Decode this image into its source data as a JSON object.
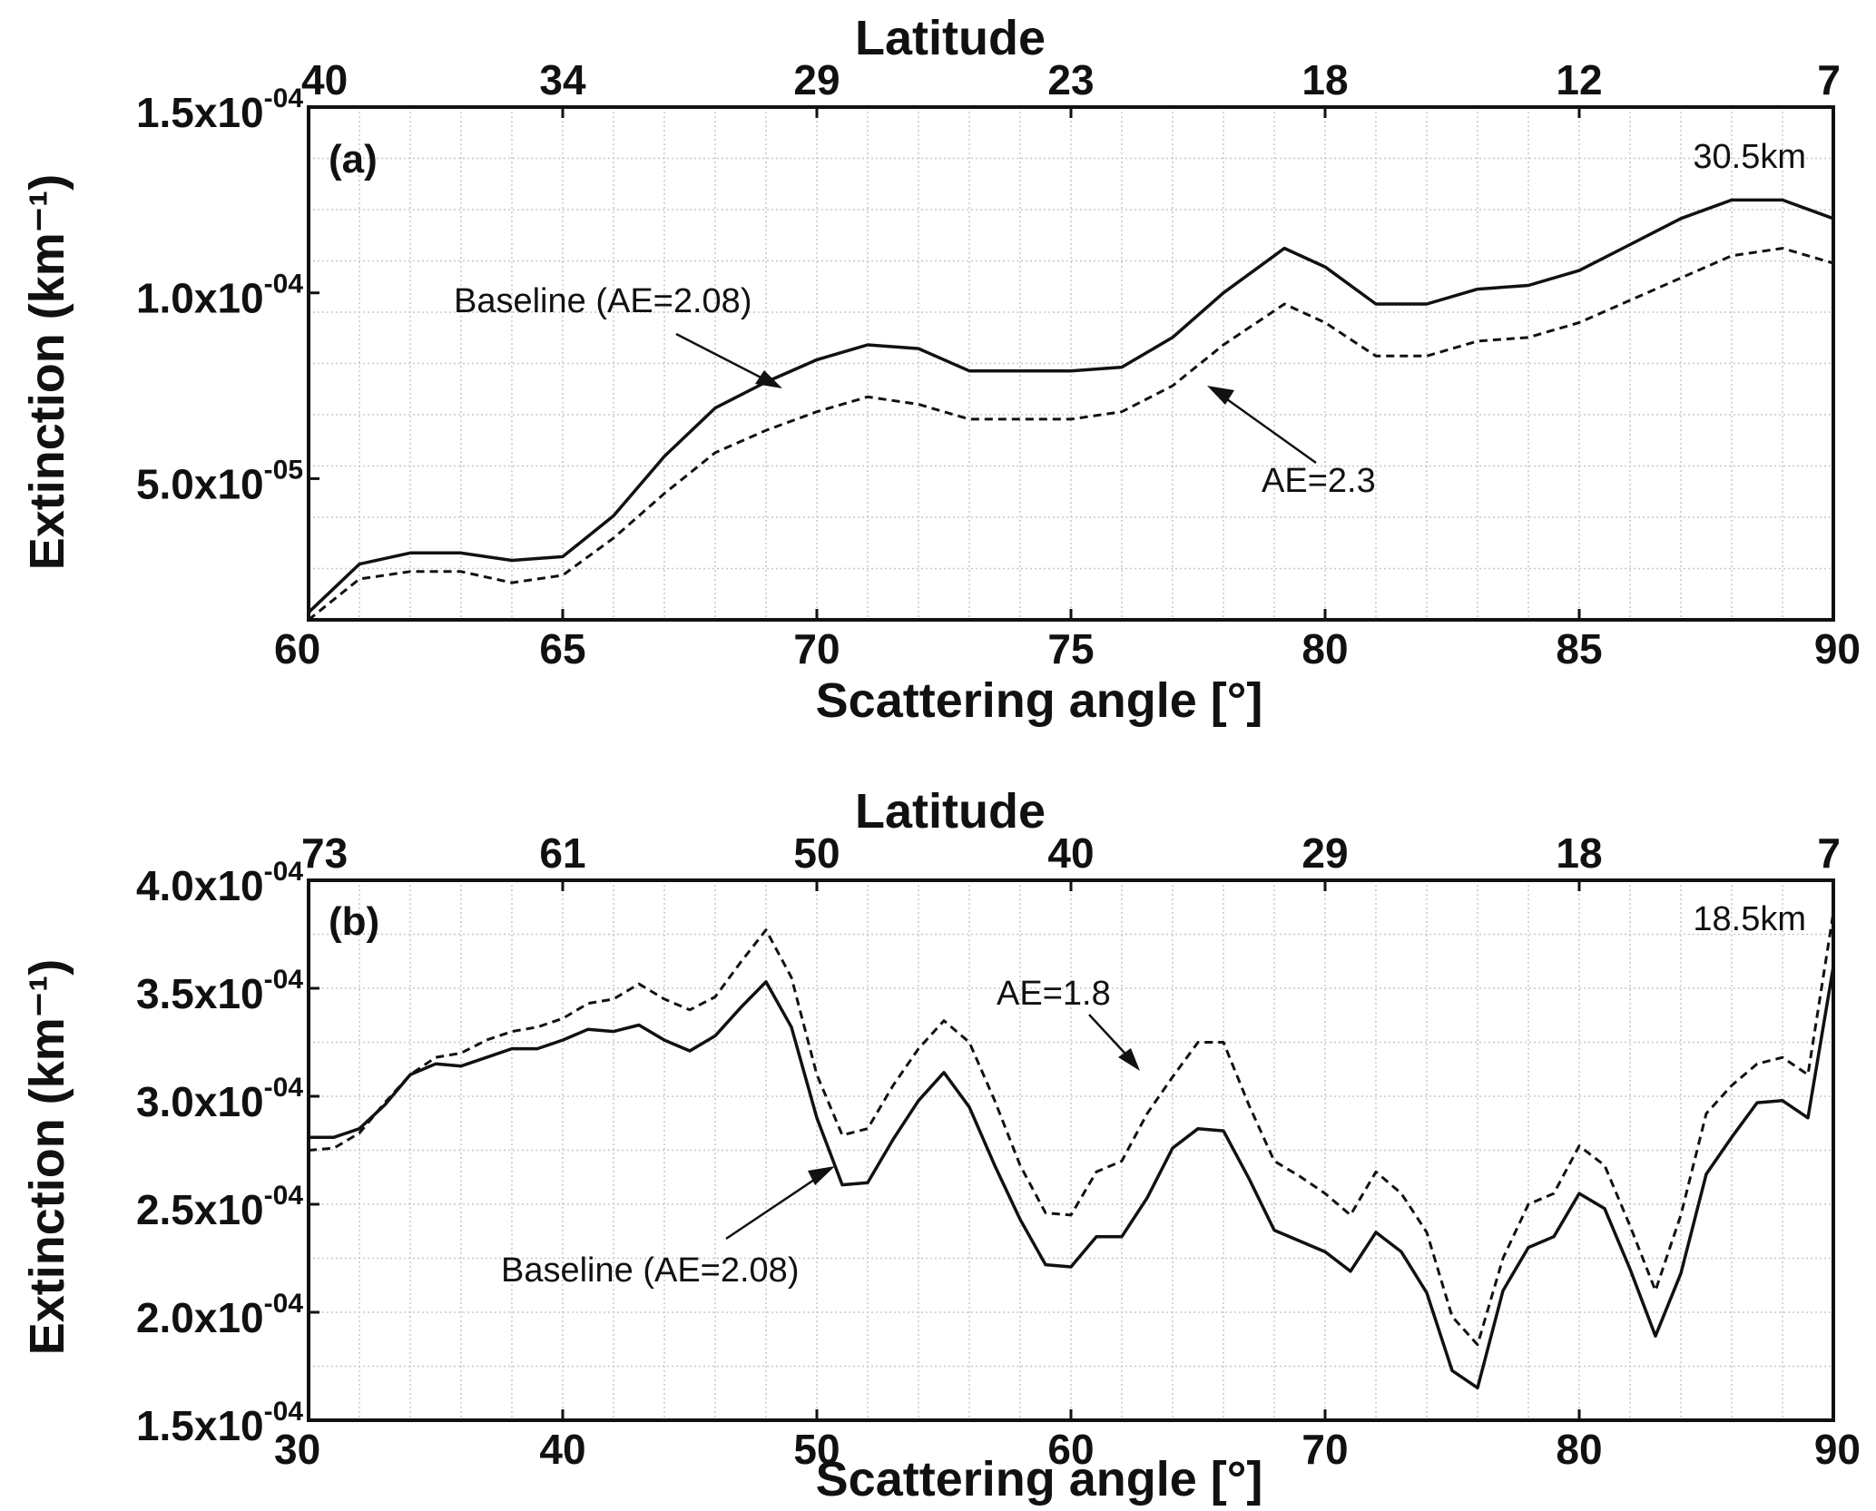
{
  "chart_data": [
    {
      "type": "line",
      "panel_label": "(a)",
      "altitude_label": "30.5km",
      "xlabel": "Scattering angle [°]",
      "ylabel": "Extinction (km⁻¹)",
      "top_axis_label": "Latitude",
      "xlim": [
        60,
        90
      ],
      "ylim": [
        1.2e-05,
        0.00015
      ],
      "x_ticks": [
        60,
        65,
        70,
        75,
        80,
        85,
        90
      ],
      "x_tick_labels": [
        "60",
        "65",
        "70",
        "75",
        "80",
        "85",
        "90"
      ],
      "y_ticks": [
        5e-05,
        0.0001,
        0.00015
      ],
      "y_tick_labels": [
        {
          "mantissa": "5.0x10",
          "exp": "-05"
        },
        {
          "mantissa": "1.0x10",
          "exp": "-04"
        },
        {
          "mantissa": "1.5x10",
          "exp": "-04"
        }
      ],
      "top_ticks": [
        {
          "x": 60,
          "label": "40"
        },
        {
          "x": 65,
          "label": "34"
        },
        {
          "x": 70,
          "label": "29"
        },
        {
          "x": 75,
          "label": "23"
        },
        {
          "x": 80,
          "label": "18"
        },
        {
          "x": 85,
          "label": "12"
        },
        {
          "x": 90,
          "label": "7"
        }
      ],
      "grid": true,
      "series": [
        {
          "name": "Baseline (AE=2.08)",
          "style": "solid",
          "x": [
            60,
            61,
            62,
            63,
            64,
            65,
            66,
            67,
            68,
            69,
            70,
            71,
            72,
            73,
            74,
            75,
            76,
            77,
            78,
            79.2,
            80,
            81,
            82,
            83,
            84,
            85,
            86,
            87,
            88,
            89,
            90
          ],
          "y": [
            1.4e-05,
            2.7e-05,
            3e-05,
            3e-05,
            2.8e-05,
            2.9e-05,
            4e-05,
            5.6e-05,
            6.9e-05,
            7.6e-05,
            8.2e-05,
            8.6e-05,
            8.5e-05,
            7.9e-05,
            7.9e-05,
            7.9e-05,
            8e-05,
            8.8e-05,
            0.0001,
            0.000112,
            0.000107,
            9.7e-05,
            9.7e-05,
            0.000101,
            0.000102,
            0.000106,
            0.000113,
            0.00012,
            0.000125,
            0.000125,
            0.00012
          ]
        },
        {
          "name": "AE=2.3",
          "style": "dashed",
          "x": [
            60,
            61,
            62,
            63,
            64,
            65,
            66,
            67,
            68,
            69,
            70,
            71,
            72,
            73,
            74,
            75,
            76,
            77,
            78,
            79.2,
            80,
            81,
            82,
            83,
            84,
            85,
            86,
            87,
            88,
            89,
            90
          ],
          "y": [
            1.2e-05,
            2.3e-05,
            2.5e-05,
            2.5e-05,
            2.2e-05,
            2.4e-05,
            3.4e-05,
            4.6e-05,
            5.7e-05,
            6.3e-05,
            6.8e-05,
            7.2e-05,
            7e-05,
            6.6e-05,
            6.6e-05,
            6.6e-05,
            6.8e-05,
            7.5e-05,
            8.6e-05,
            9.7e-05,
            9.2e-05,
            8.3e-05,
            8.3e-05,
            8.7e-05,
            8.8e-05,
            9.2e-05,
            9.8e-05,
            0.000104,
            0.00011,
            0.000112,
            0.000108
          ]
        }
      ],
      "annotations": [
        {
          "text": "Baseline (AE=2.08)",
          "points_to": {
            "x": 69.2,
            "y": 7.6e-05
          }
        },
        {
          "text": "AE=2.3",
          "points_to": {
            "x": 77.5,
            "y": 7.8e-05
          }
        }
      ]
    },
    {
      "type": "line",
      "panel_label": "(b)",
      "altitude_label": "18.5km",
      "xlabel": "Scattering angle [°]",
      "ylabel": "Extinction (km⁻¹)",
      "top_axis_label": "Latitude",
      "xlim": [
        30,
        90
      ],
      "ylim": [
        0.00015,
        0.0004
      ],
      "x_ticks": [
        30,
        40,
        50,
        60,
        70,
        80,
        90
      ],
      "x_tick_labels": [
        "30",
        "40",
        "50",
        "60",
        "70",
        "80",
        "90"
      ],
      "y_ticks": [
        0.00015,
        0.0002,
        0.00025,
        0.0003,
        0.00035,
        0.0004
      ],
      "y_tick_labels": [
        {
          "mantissa": "1.5x10",
          "exp": "-04"
        },
        {
          "mantissa": "2.0x10",
          "exp": "-04"
        },
        {
          "mantissa": "2.5x10",
          "exp": "-04"
        },
        {
          "mantissa": "3.0x10",
          "exp": "-04"
        },
        {
          "mantissa": "3.5x10",
          "exp": "-04"
        },
        {
          "mantissa": "4.0x10",
          "exp": "-04"
        }
      ],
      "top_ticks": [
        {
          "x": 30,
          "label": "73"
        },
        {
          "x": 40,
          "label": "61"
        },
        {
          "x": 50,
          "label": "50"
        },
        {
          "x": 60,
          "label": "40"
        },
        {
          "x": 70,
          "label": "29"
        },
        {
          "x": 80,
          "label": "18"
        },
        {
          "x": 90,
          "label": "7"
        }
      ],
      "grid": true,
      "series": [
        {
          "name": "Baseline (AE=2.08)",
          "style": "solid",
          "x": [
            30,
            31,
            32,
            33,
            34,
            35,
            36,
            37,
            38,
            39,
            40,
            41,
            42,
            43,
            44,
            45,
            46,
            47,
            48,
            49,
            50,
            51,
            52,
            53,
            54,
            55,
            56,
            57,
            58,
            59,
            60,
            61,
            62,
            63,
            64,
            65,
            66,
            67,
            68,
            69,
            70,
            71,
            72,
            73,
            74,
            75,
            76,
            77,
            78,
            79,
            80,
            81,
            82,
            83,
            84,
            85,
            86,
            87,
            88,
            89,
            90
          ],
          "y": [
            0.000281,
            0.000281,
            0.000285,
            0.000296,
            0.00031,
            0.000315,
            0.000314,
            0.000318,
            0.000322,
            0.000322,
            0.000326,
            0.000331,
            0.00033,
            0.000333,
            0.000326,
            0.000321,
            0.000328,
            0.000341,
            0.000353,
            0.000332,
            0.00029,
            0.000259,
            0.00026,
            0.00028,
            0.000298,
            0.000311,
            0.000295,
            0.000268,
            0.000243,
            0.000222,
            0.000221,
            0.000235,
            0.000235,
            0.000253,
            0.000276,
            0.000285,
            0.000284,
            0.000262,
            0.000238,
            0.000233,
            0.000228,
            0.000219,
            0.000237,
            0.000228,
            0.000209,
            0.000173,
            0.000165,
            0.00021,
            0.00023,
            0.000235,
            0.000255,
            0.000248,
            0.00022,
            0.000189,
            0.000218,
            0.000264,
            0.000281,
            0.000297,
            0.000298,
            0.00029,
            0.00036
          ]
        },
        {
          "name": "AE=1.8",
          "style": "dashed",
          "x": [
            30,
            31,
            32,
            33,
            34,
            35,
            36,
            37,
            38,
            39,
            40,
            41,
            42,
            43,
            44,
            45,
            46,
            47,
            48,
            49,
            50,
            51,
            52,
            53,
            54,
            55,
            56,
            57,
            58,
            59,
            60,
            61,
            62,
            63,
            64,
            65,
            66,
            67,
            68,
            69,
            70,
            71,
            72,
            73,
            74,
            75,
            76,
            77,
            78,
            79,
            80,
            81,
            82,
            83,
            84,
            85,
            86,
            87,
            88,
            89,
            90
          ],
          "y": [
            0.000275,
            0.000276,
            0.000283,
            0.000297,
            0.00031,
            0.000318,
            0.00032,
            0.000326,
            0.00033,
            0.000332,
            0.000336,
            0.000343,
            0.000345,
            0.000352,
            0.000345,
            0.00034,
            0.000346,
            0.000362,
            0.000377,
            0.000355,
            0.00031,
            0.000282,
            0.000285,
            0.000305,
            0.000322,
            0.000335,
            0.000325,
            0.000298,
            0.000268,
            0.000246,
            0.000245,
            0.000265,
            0.00027,
            0.000292,
            0.000309,
            0.000325,
            0.000325,
            0.000296,
            0.00027,
            0.000263,
            0.000255,
            0.000245,
            0.000265,
            0.000255,
            0.000237,
            0.000198,
            0.000185,
            0.000225,
            0.00025,
            0.000255,
            0.000277,
            0.000268,
            0.00024,
            0.00021,
            0.000245,
            0.000292,
            0.000305,
            0.000315,
            0.000318,
            0.00031,
            0.000385
          ]
        }
      ],
      "annotations": [
        {
          "text": "AE=1.8",
          "points_to": {
            "x": 63.5,
            "y": 0.000299
          }
        },
        {
          "text": "Baseline (AE=2.08)",
          "points_to": {
            "x": 51.2,
            "y": 0.000269
          }
        }
      ]
    }
  ]
}
